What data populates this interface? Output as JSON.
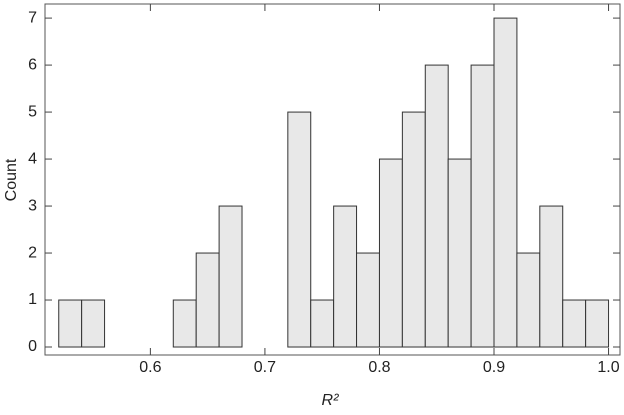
{
  "chart_data": {
    "type": "histogram",
    "xlabel": "R²",
    "ylabel": "Count",
    "bins": [
      0.52,
      0.54,
      0.56,
      0.58,
      0.6,
      0.62,
      0.64,
      0.66,
      0.68,
      0.7,
      0.72,
      0.74,
      0.76,
      0.78,
      0.8,
      0.82,
      0.84,
      0.86,
      0.88,
      0.9,
      0.92,
      0.94,
      0.96,
      0.98,
      1.0
    ],
    "values": [
      1,
      1,
      0,
      0,
      0,
      1,
      2,
      3,
      0,
      0,
      5,
      1,
      3,
      2,
      4,
      5,
      6,
      4,
      6,
      7,
      2,
      3,
      1,
      1
    ],
    "color": "#e8e8e8",
    "edgecolor": "#333333",
    "xlim": [
      0.508,
      1.01
    ],
    "xticks": [
      0.6,
      0.7,
      0.8,
      0.9,
      {
        "value": 1,
        "label": "1.0"
      }
    ],
    "ylim": [
      -0.17,
      7.3
    ],
    "yticks": [
      0,
      1,
      2,
      3,
      4,
      5,
      6,
      7
    ]
  }
}
